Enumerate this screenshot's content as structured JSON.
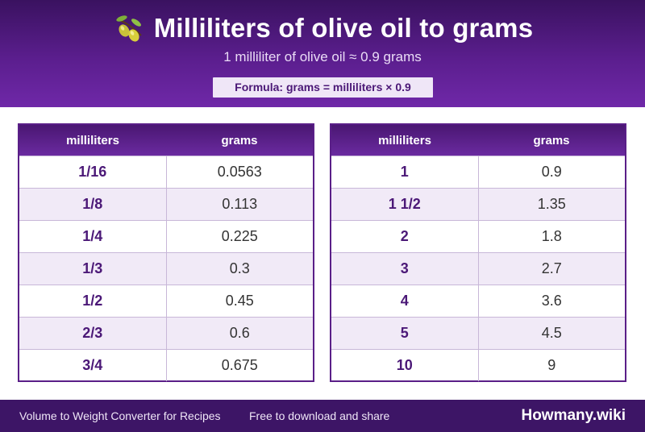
{
  "header": {
    "title": "Milliliters of olive oil to grams",
    "subtitle": "1 milliliter of olive oil ≈ 0.9 grams",
    "formula": "Formula: grams = milliliters × 0.9",
    "icon": "olive-icon"
  },
  "tables": {
    "left": {
      "headers": [
        "milliliters",
        "grams"
      ],
      "rows": [
        [
          "1/16",
          "0.0563"
        ],
        [
          "1/8",
          "0.113"
        ],
        [
          "1/4",
          "0.225"
        ],
        [
          "1/3",
          "0.3"
        ],
        [
          "1/2",
          "0.45"
        ],
        [
          "2/3",
          "0.6"
        ],
        [
          "3/4",
          "0.675"
        ]
      ]
    },
    "right": {
      "headers": [
        "milliliters",
        "grams"
      ],
      "rows": [
        [
          "1",
          "0.9"
        ],
        [
          "1 1/2",
          "1.35"
        ],
        [
          "2",
          "1.8"
        ],
        [
          "3",
          "2.7"
        ],
        [
          "4",
          "3.6"
        ],
        [
          "5",
          "4.5"
        ],
        [
          "10",
          "9"
        ]
      ]
    }
  },
  "footer": {
    "left_text": "Volume to Weight Converter for Recipes",
    "mid_text": "Free to download and share",
    "brand": "Howmany.wiki"
  },
  "colors": {
    "header_purple": "#5b1e8e",
    "accent_text": "#4b1877",
    "row_alt": "#f1eaf7",
    "footer": "#3d1566"
  }
}
